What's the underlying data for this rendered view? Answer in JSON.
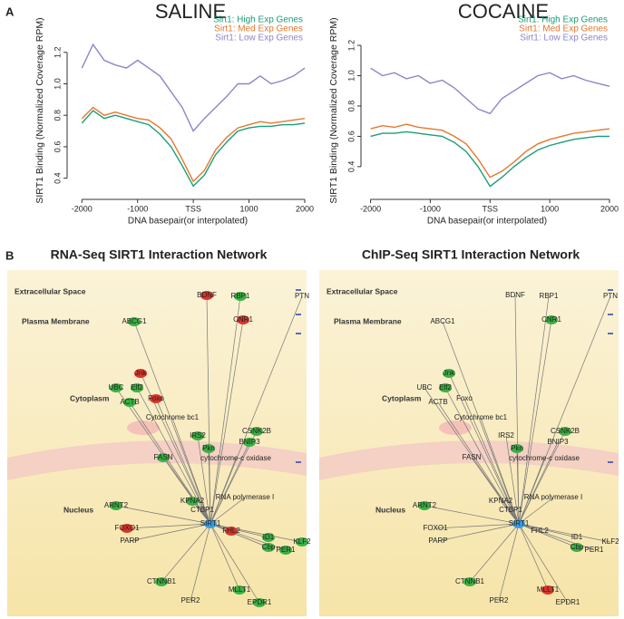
{
  "panel_labels": [
    "A",
    "B"
  ],
  "chart_data": [
    {
      "type": "line",
      "title": "SALINE",
      "ylabel": "SIRT1 Binding (Normalized Coverage RPM)",
      "xlabel": "DNA basepair(or interpolated)",
      "x": [
        -2000,
        -1800,
        -1600,
        -1400,
        -1200,
        -1000,
        -800,
        -600,
        -400,
        -200,
        0,
        200,
        400,
        600,
        800,
        1000,
        1200,
        1400,
        1600,
        1800,
        2000
      ],
      "series": [
        {
          "name": "Sirt1: High Exp Genes",
          "color": "#1a9e77",
          "values": [
            0.75,
            0.83,
            0.78,
            0.8,
            0.78,
            0.76,
            0.74,
            0.68,
            0.6,
            0.48,
            0.35,
            0.42,
            0.55,
            0.63,
            0.7,
            0.72,
            0.73,
            0.73,
            0.74,
            0.74,
            0.75
          ]
        },
        {
          "name": "Sirt1: Med Exp Genes",
          "color": "#e6772e",
          "values": [
            0.78,
            0.85,
            0.8,
            0.82,
            0.8,
            0.78,
            0.77,
            0.72,
            0.65,
            0.52,
            0.38,
            0.45,
            0.58,
            0.66,
            0.72,
            0.74,
            0.76,
            0.75,
            0.76,
            0.77,
            0.78
          ]
        },
        {
          "name": "Sirt1: Low Exp Genes",
          "color": "#8c86c8",
          "values": [
            1.1,
            1.25,
            1.15,
            1.12,
            1.1,
            1.15,
            1.1,
            1.05,
            0.95,
            0.85,
            0.7,
            0.78,
            0.85,
            0.92,
            1.0,
            1.0,
            1.05,
            1.0,
            1.02,
            1.05,
            1.1
          ]
        }
      ],
      "xlim": [
        -2200,
        2000
      ],
      "xticks": [
        -2000,
        -1000,
        {
          "value": 0,
          "label": "TSS"
        },
        1000,
        2000
      ],
      "ylim": [
        0.3,
        1.36
      ],
      "yticks": [
        0.4,
        0.6,
        0.8,
        {
          "value": 1.0,
          "label": "1.0"
        },
        1.2
      ]
    },
    {
      "type": "line",
      "title": "COCAINE",
      "ylabel": "SIRT1 Binding (Normalized Coverage RPM)",
      "xlabel": "DNA basepair(or interpolated)",
      "x": [
        -2000,
        -1800,
        -1600,
        -1400,
        -1200,
        -1000,
        -800,
        -600,
        -400,
        -200,
        0,
        200,
        400,
        600,
        800,
        1000,
        1200,
        1400,
        1600,
        1800,
        2000
      ],
      "series": [
        {
          "name": "Sirt1: High Exp Genes",
          "color": "#1a9e77",
          "values": [
            0.6,
            0.62,
            0.62,
            0.63,
            0.62,
            0.61,
            0.6,
            0.56,
            0.5,
            0.4,
            0.27,
            0.33,
            0.4,
            0.46,
            0.51,
            0.54,
            0.56,
            0.58,
            0.59,
            0.6,
            0.6
          ]
        },
        {
          "name": "Sirt1: Med Exp Genes",
          "color": "#e6772e",
          "values": [
            0.65,
            0.67,
            0.66,
            0.68,
            0.66,
            0.65,
            0.64,
            0.6,
            0.55,
            0.45,
            0.33,
            0.37,
            0.43,
            0.5,
            0.55,
            0.58,
            0.6,
            0.62,
            0.63,
            0.64,
            0.65
          ]
        },
        {
          "name": "Sirt1: Low Exp Genes",
          "color": "#8c86c8",
          "values": [
            1.05,
            1.0,
            1.02,
            0.98,
            1.0,
            0.95,
            0.97,
            0.92,
            0.85,
            0.78,
            0.75,
            0.85,
            0.9,
            0.95,
            1.0,
            1.02,
            0.98,
            1.0,
            0.97,
            0.95,
            0.93
          ]
        }
      ],
      "xlim": [
        -2100,
        2000
      ],
      "xticks": [
        -2000,
        -1000,
        {
          "value": 0,
          "label": "TSS"
        },
        1000,
        2000
      ],
      "ylim": [
        0.22,
        1.32
      ],
      "yticks": [
        0.4,
        0.6,
        0.8,
        {
          "value": 1.0,
          "label": "1.0"
        },
        1.2
      ]
    }
  ],
  "networks": [
    {
      "title": "RNA-Seq SIRT1 Interaction Network",
      "compartments": [
        "Extracellular Space",
        "Plasma Membrane",
        "Cytoplasm",
        "Nucleus"
      ],
      "nodes": [
        {
          "label": "BDNF",
          "color": "#d9342b"
        },
        {
          "label": "RBP1",
          "color": "#3cb043"
        },
        {
          "label": "PTN"
        },
        {
          "label": "ABCG1",
          "color": "#3cb043"
        },
        {
          "label": "CNR1",
          "color": "#d9342b"
        },
        {
          "label": "Jnk",
          "color": "#d9342b"
        },
        {
          "label": "UBC",
          "color": "#3cb043"
        },
        {
          "label": "Elf2",
          "color": "#3cb043"
        },
        {
          "label": "ACTB",
          "color": "#3cb043"
        },
        {
          "label": "Foxo",
          "color": "#d9342b"
        },
        {
          "label": "Cytochrome bc1"
        },
        {
          "label": "IRS2",
          "color": "#3cb043"
        },
        {
          "label": "CSNK2B",
          "color": "#3cb043"
        },
        {
          "label": "BNIP3",
          "color": "#3cb043"
        },
        {
          "label": "Pkn",
          "color": "#3cb043"
        },
        {
          "label": "cytochrome-c oxidase"
        },
        {
          "label": "FASN",
          "color": "#3cb043"
        },
        {
          "label": "ARNT2",
          "color": "#3cb043"
        },
        {
          "label": "KPNA2",
          "color": "#3cb043"
        },
        {
          "label": "CTBP1"
        },
        {
          "label": "RNA polymerase I"
        },
        {
          "label": "FOXO1",
          "color": "#d9342b"
        },
        {
          "label": "FHL2",
          "color": "#d9342b"
        },
        {
          "label": "PARP"
        },
        {
          "label": "SIRT1",
          "color": "#3a9ee0"
        },
        {
          "label": "ID1",
          "color": "#3cb043"
        },
        {
          "label": "Cbp",
          "color": "#3cb043"
        },
        {
          "label": "KLF2",
          "color": "#3cb043"
        },
        {
          "label": "PER1",
          "color": "#3cb043"
        },
        {
          "label": "CTNNB1",
          "color": "#3cb043"
        },
        {
          "label": "MLLT1",
          "color": "#3cb043"
        },
        {
          "label": "PER2"
        },
        {
          "label": "EPDR1",
          "color": "#3cb043"
        }
      ]
    },
    {
      "title": "ChIP-Seq SIRT1 Interaction Network",
      "compartments": [
        "Extracellular Space",
        "Plasma Membrane",
        "Cytoplasm",
        "Nucleus"
      ],
      "nodes": [
        {
          "label": "BDNF"
        },
        {
          "label": "RBP1"
        },
        {
          "label": "PTN"
        },
        {
          "label": "ABCG1"
        },
        {
          "label": "CNR1",
          "color": "#3cb043"
        },
        {
          "label": "Jnk",
          "color": "#3cb043"
        },
        {
          "label": "UBC"
        },
        {
          "label": "Elf2",
          "color": "#3cb043"
        },
        {
          "label": "ACTB"
        },
        {
          "label": "Foxo"
        },
        {
          "label": "Cytochrome bc1"
        },
        {
          "label": "IRS2"
        },
        {
          "label": "CSNK2B",
          "color": "#3cb043"
        },
        {
          "label": "BNIP3"
        },
        {
          "label": "Pkn",
          "color": "#3cb043"
        },
        {
          "label": "cytochrome-c oxidase"
        },
        {
          "label": "FASN"
        },
        {
          "label": "ARNT2",
          "color": "#3cb043"
        },
        {
          "label": "KPNA2"
        },
        {
          "label": "CTBP1"
        },
        {
          "label": "RNA polymerase I"
        },
        {
          "label": "FOXO1"
        },
        {
          "label": "FHL2"
        },
        {
          "label": "PARP"
        },
        {
          "label": "SIRT1",
          "color": "#3a9ee0"
        },
        {
          "label": "ID1"
        },
        {
          "label": "Cbp",
          "color": "#3cb043"
        },
        {
          "label": "KLF2"
        },
        {
          "label": "PER1"
        },
        {
          "label": "CTNNB1",
          "color": "#3cb043"
        },
        {
          "label": "MLLT1",
          "color": "#d9342b"
        },
        {
          "label": "PER2"
        },
        {
          "label": "EPDR1"
        }
      ]
    }
  ]
}
